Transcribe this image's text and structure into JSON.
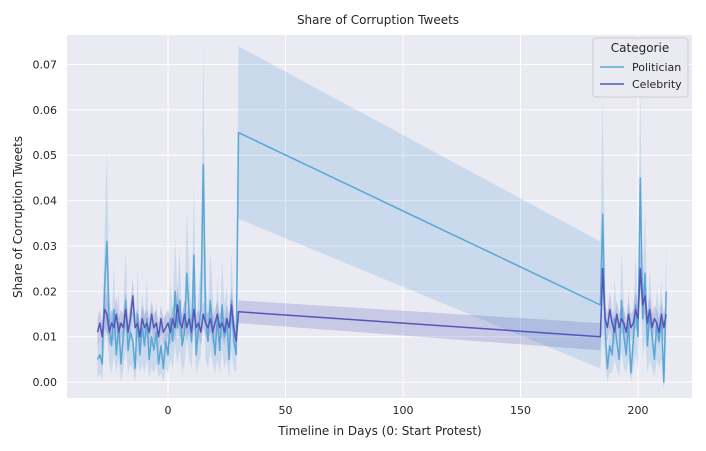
{
  "chart_data": {
    "type": "line",
    "title": "Share of Corruption Tweets",
    "xlabel": "Timeline in Days (0: Start Protest)",
    "ylabel": "Share of Corruption Tweets",
    "xlim": [
      -43,
      223
    ],
    "ylim": [
      -0.0035,
      0.0765
    ],
    "xticks": [
      0,
      50,
      100,
      150,
      200
    ],
    "yticks": [
      0.0,
      0.01,
      0.02,
      0.03,
      0.04,
      0.05,
      0.06,
      0.07
    ],
    "ytick_labels": [
      "0.00",
      "0.01",
      "0.02",
      "0.03",
      "0.04",
      "0.05",
      "0.06",
      "0.07"
    ],
    "grid": true,
    "legend": {
      "title": "Categorie",
      "position": "top-right"
    },
    "series": [
      {
        "name": "Politician",
        "color": "#5aa6d6",
        "x": [
          -30,
          -29,
          -28,
          -27,
          -26,
          -25,
          -24,
          -23,
          -22,
          -21,
          -20,
          -19,
          -18,
          -17,
          -16,
          -15,
          -14,
          -13,
          -12,
          -11,
          -10,
          -9,
          -8,
          -7,
          -6,
          -5,
          -4,
          -3,
          -2,
          -1,
          0,
          1,
          2,
          3,
          4,
          5,
          6,
          7,
          8,
          9,
          10,
          11,
          12,
          13,
          14,
          15,
          16,
          17,
          18,
          19,
          20,
          21,
          22,
          23,
          24,
          25,
          26,
          27,
          28,
          29,
          30,
          184,
          185,
          186,
          187,
          188,
          189,
          190,
          191,
          192,
          193,
          194,
          195,
          196,
          197,
          198,
          199,
          200,
          201,
          202,
          203,
          204,
          205,
          206,
          207,
          208,
          209,
          210,
          211,
          212
        ],
        "y": [
          0.005,
          0.006,
          0.004,
          0.021,
          0.031,
          0.012,
          0.008,
          0.016,
          0.006,
          0.013,
          0.004,
          0.01,
          0.018,
          0.007,
          0.011,
          0.009,
          0.003,
          0.015,
          0.006,
          0.012,
          0.008,
          0.014,
          0.005,
          0.01,
          0.007,
          0.011,
          0.004,
          0.008,
          0.003,
          0.009,
          0.006,
          0.014,
          0.009,
          0.02,
          0.012,
          0.018,
          0.008,
          0.011,
          0.024,
          0.015,
          0.009,
          0.028,
          0.006,
          0.012,
          0.016,
          0.048,
          0.014,
          0.009,
          0.018,
          0.012,
          0.006,
          0.014,
          0.007,
          0.017,
          0.01,
          0.013,
          0.005,
          0.018,
          0.009,
          0.006,
          0.055,
          0.017,
          0.037,
          0.012,
          0.003,
          0.008,
          0.006,
          0.014,
          0.009,
          0.005,
          0.018,
          0.01,
          0.006,
          0.013,
          0.002,
          0.009,
          0.017,
          0.01,
          0.045,
          0.014,
          0.024,
          0.008,
          0.015,
          0.01,
          0.005,
          0.013,
          0.009,
          0.014,
          0.0,
          0.02
        ],
        "band_halfwidth": [
          0.004,
          0.004,
          0.004,
          0.012,
          0.02,
          0.008,
          0.006,
          0.01,
          0.004,
          0.008,
          0.004,
          0.007,
          0.011,
          0.005,
          0.007,
          0.006,
          0.003,
          0.01,
          0.004,
          0.008,
          0.006,
          0.009,
          0.004,
          0.007,
          0.005,
          0.007,
          0.003,
          0.006,
          0.003,
          0.006,
          0.004,
          0.009,
          0.006,
          0.012,
          0.008,
          0.011,
          0.006,
          0.007,
          0.014,
          0.01,
          0.006,
          0.016,
          0.004,
          0.008,
          0.01,
          0.026,
          0.009,
          0.006,
          0.011,
          0.008,
          0.004,
          0.009,
          0.005,
          0.01,
          0.007,
          0.008,
          0.004,
          0.011,
          0.006,
          0.004,
          0.019,
          0.014,
          0.026,
          0.008,
          0.003,
          0.006,
          0.004,
          0.009,
          0.006,
          0.004,
          0.011,
          0.007,
          0.004,
          0.008,
          0.002,
          0.006,
          0.011,
          0.007,
          0.02,
          0.009,
          0.014,
          0.006,
          0.01,
          0.007,
          0.004,
          0.008,
          0.006,
          0.009,
          0.002,
          0.012
        ]
      },
      {
        "name": "Celebrity",
        "color": "#5358b8",
        "x": [
          -30,
          -29,
          -28,
          -27,
          -26,
          -25,
          -24,
          -23,
          -22,
          -21,
          -20,
          -19,
          -18,
          -17,
          -16,
          -15,
          -14,
          -13,
          -12,
          -11,
          -10,
          -9,
          -8,
          -7,
          -6,
          -5,
          -4,
          -3,
          -2,
          -1,
          0,
          1,
          2,
          3,
          4,
          5,
          6,
          7,
          8,
          9,
          10,
          11,
          12,
          13,
          14,
          15,
          16,
          17,
          18,
          19,
          20,
          21,
          22,
          23,
          24,
          25,
          26,
          27,
          28,
          29,
          30,
          184,
          185,
          186,
          187,
          188,
          189,
          190,
          191,
          192,
          193,
          194,
          195,
          196,
          197,
          198,
          199,
          200,
          201,
          202,
          203,
          204,
          205,
          206,
          207,
          208,
          209,
          210,
          211,
          212
        ],
        "y": [
          0.011,
          0.013,
          0.01,
          0.016,
          0.015,
          0.011,
          0.013,
          0.012,
          0.015,
          0.011,
          0.013,
          0.012,
          0.016,
          0.011,
          0.014,
          0.019,
          0.012,
          0.013,
          0.01,
          0.014,
          0.012,
          0.013,
          0.011,
          0.015,
          0.012,
          0.013,
          0.01,
          0.014,
          0.011,
          0.012,
          0.013,
          0.011,
          0.014,
          0.012,
          0.017,
          0.013,
          0.012,
          0.015,
          0.012,
          0.014,
          0.011,
          0.016,
          0.012,
          0.013,
          0.011,
          0.015,
          0.013,
          0.012,
          0.014,
          0.011,
          0.013,
          0.015,
          0.012,
          0.013,
          0.011,
          0.014,
          0.012,
          0.017,
          0.012,
          0.009,
          0.0155,
          0.01,
          0.025,
          0.014,
          0.012,
          0.016,
          0.013,
          0.011,
          0.015,
          0.012,
          0.014,
          0.013,
          0.011,
          0.015,
          0.012,
          0.013,
          0.016,
          0.014,
          0.025,
          0.017,
          0.019,
          0.013,
          0.016,
          0.012,
          0.014,
          0.013,
          0.011,
          0.015,
          0.012,
          0.015
        ],
        "band_halfwidth": [
          0.003,
          0.003,
          0.003,
          0.004,
          0.004,
          0.003,
          0.003,
          0.003,
          0.004,
          0.003,
          0.003,
          0.003,
          0.004,
          0.003,
          0.003,
          0.004,
          0.003,
          0.003,
          0.003,
          0.003,
          0.003,
          0.003,
          0.003,
          0.003,
          0.003,
          0.003,
          0.003,
          0.003,
          0.003,
          0.003,
          0.003,
          0.003,
          0.003,
          0.003,
          0.004,
          0.003,
          0.003,
          0.003,
          0.003,
          0.003,
          0.003,
          0.004,
          0.003,
          0.003,
          0.003,
          0.003,
          0.003,
          0.003,
          0.003,
          0.003,
          0.003,
          0.003,
          0.003,
          0.003,
          0.003,
          0.003,
          0.003,
          0.004,
          0.003,
          0.003,
          0.0025,
          0.003,
          0.005,
          0.003,
          0.003,
          0.004,
          0.003,
          0.003,
          0.003,
          0.003,
          0.003,
          0.003,
          0.003,
          0.003,
          0.003,
          0.003,
          0.004,
          0.003,
          0.005,
          0.004,
          0.004,
          0.003,
          0.003,
          0.003,
          0.003,
          0.003,
          0.003,
          0.003,
          0.003,
          0.003
        ]
      }
    ]
  }
}
